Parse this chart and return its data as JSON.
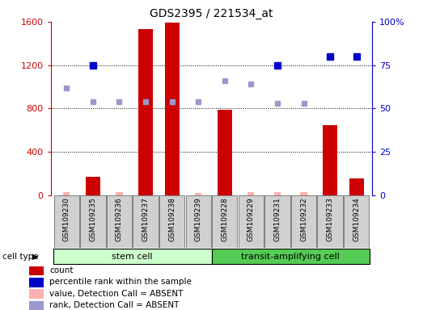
{
  "title": "GDS2395 / 221534_at",
  "samples": [
    "GSM109230",
    "GSM109235",
    "GSM109236",
    "GSM109237",
    "GSM109238",
    "GSM109239",
    "GSM109228",
    "GSM109229",
    "GSM109231",
    "GSM109232",
    "GSM109233",
    "GSM109234"
  ],
  "count_values": [
    null,
    170,
    null,
    1530,
    1590,
    null,
    790,
    null,
    null,
    null,
    650,
    155
  ],
  "count_absent_values": [
    30,
    null,
    30,
    null,
    null,
    20,
    null,
    30,
    30,
    30,
    null,
    null
  ],
  "rank_values": [
    null,
    75,
    null,
    null,
    null,
    null,
    null,
    null,
    75,
    null,
    80,
    80
  ],
  "rank_absent_values": [
    62,
    54,
    54,
    54,
    54,
    54,
    66,
    64,
    53,
    53,
    null,
    null
  ],
  "ylim_left": [
    0,
    1600
  ],
  "ylim_right": [
    0,
    100
  ],
  "yticks_left": [
    0,
    400,
    800,
    1200,
    1600
  ],
  "yticks_right": [
    0,
    25,
    50,
    75,
    100
  ],
  "ytick_labels_right": [
    "0",
    "25",
    "50",
    "75",
    "100%"
  ],
  "bar_color": "#cc0000",
  "absent_bar_color": "#ffb0b0",
  "rank_color": "#0000cc",
  "rank_absent_color": "#9999cc",
  "stem_cell_color": "#ccffcc",
  "transit_cell_color": "#55cc55",
  "legend_items": [
    {
      "label": "count",
      "color": "#cc0000"
    },
    {
      "label": "percentile rank within the sample",
      "color": "#0000cc"
    },
    {
      "label": "value, Detection Call = ABSENT",
      "color": "#ffb0b0"
    },
    {
      "label": "rank, Detection Call = ABSENT",
      "color": "#9999cc"
    }
  ]
}
